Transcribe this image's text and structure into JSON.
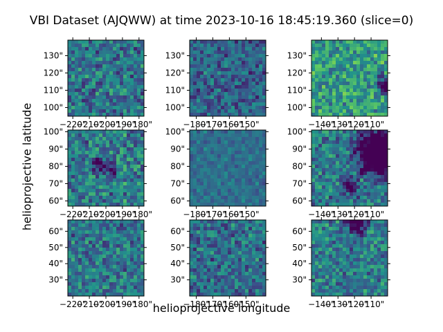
{
  "chart_data": {
    "type": "heatmap",
    "title": "VBI Dataset (AJQWW) at time 2023-10-16 18:45:19.360 (slice=0)",
    "xlabel": "helioprojective longitude",
    "ylabel": "helioprojective latitude",
    "colormap": [
      "#440154",
      "#3b528b",
      "#21918c",
      "#5ec962",
      "#fde725"
    ],
    "grid": false,
    "panels": [
      {
        "row": 0,
        "col": 0,
        "xlim": [
          -223,
          -177
        ],
        "ylim": [
          95,
          139
        ],
        "xticks": [
          "−220\"",
          "−210\"",
          "−200\"",
          "−190\"",
          "−180\""
        ],
        "xtick_values": [
          -220,
          -210,
          -200,
          -190,
          -180
        ],
        "yticks": [
          "100\"",
          "110\"",
          "120\"",
          "130\""
        ],
        "ytick_values": [
          100,
          110,
          120,
          130
        ],
        "mean_level": 0.38,
        "contrast": 0.22,
        "features": []
      },
      {
        "row": 0,
        "col": 1,
        "xlim": [
          -184,
          -138
        ],
        "ylim": [
          95,
          139
        ],
        "xticks": [
          "−180\"",
          "−170\"",
          "−160\"",
          "−150\""
        ],
        "xtick_values": [
          -180,
          -170,
          -160,
          -150
        ],
        "yticks": [
          "100\"",
          "110\"",
          "120\"",
          "130\""
        ],
        "ytick_values": [
          100,
          110,
          120,
          130
        ],
        "mean_level": 0.32,
        "contrast": 0.18,
        "features": []
      },
      {
        "row": 0,
        "col": 2,
        "xlim": [
          -146,
          -100
        ],
        "ylim": [
          95,
          139
        ],
        "xticks": [
          "−140\"",
          "−130\"",
          "−120\"",
          "−110\""
        ],
        "xtick_values": [
          -140,
          -130,
          -120,
          -110
        ],
        "yticks": [
          "100\"",
          "110\"",
          "120\"",
          "130\""
        ],
        "ytick_values": [
          100,
          110,
          120,
          130
        ],
        "mean_level": 0.55,
        "contrast": 0.22,
        "features": [
          [
            -101,
            112,
            3,
            0.9
          ],
          [
            -105,
            118,
            1.5,
            0.6
          ]
        ]
      },
      {
        "row": 1,
        "col": 0,
        "xlim": [
          -223,
          -177
        ],
        "ylim": [
          57,
          101
        ],
        "xticks": [
          "−220\"",
          "−210\"",
          "−200\"",
          "−190\"",
          "−180\""
        ],
        "xtick_values": [
          -220,
          -210,
          -200,
          -190,
          -180
        ],
        "yticks": [
          "60\"",
          "70\"",
          "80\"",
          "90\"",
          "100\""
        ],
        "ytick_values": [
          60,
          70,
          80,
          90,
          100
        ],
        "mean_level": 0.42,
        "contrast": 0.22,
        "features": [
          [
            -203,
            80,
            3,
            0.5
          ],
          [
            -196,
            78,
            2,
            0.5
          ],
          [
            -205,
            84,
            1.5,
            0.4
          ]
        ]
      },
      {
        "row": 1,
        "col": 1,
        "xlim": [
          -184,
          -138
        ],
        "ylim": [
          57,
          101
        ],
        "xticks": [
          "−180\"",
          "−170\"",
          "−160\"",
          "−150\""
        ],
        "xtick_values": [
          -180,
          -170,
          -160,
          -150
        ],
        "yticks": [
          "60\"",
          "70\"",
          "80\"",
          "90\"",
          "100\""
        ],
        "ytick_values": [
          60,
          70,
          80,
          90,
          100
        ],
        "mean_level": 0.36,
        "contrast": 0.08,
        "features": []
      },
      {
        "row": 1,
        "col": 2,
        "xlim": [
          -146,
          -100
        ],
        "ylim": [
          57,
          101
        ],
        "xticks": [
          "−140\"",
          "−130\"",
          "−120\"",
          "−110\""
        ],
        "xtick_values": [
          -140,
          -130,
          -120,
          -110
        ],
        "yticks": [
          "60\"",
          "70\"",
          "80\"",
          "90\"",
          "100\""
        ],
        "ytick_values": [
          60,
          70,
          80,
          90,
          100
        ],
        "mean_level": 0.4,
        "contrast": 0.2,
        "features": [
          [
            -104,
            88,
            9,
            1.0
          ],
          [
            -123,
            69,
            3,
            0.6
          ],
          [
            -115,
            77,
            1.5,
            0.4
          ]
        ]
      },
      {
        "row": 2,
        "col": 0,
        "xlim": [
          -223,
          -177
        ],
        "ylim": [
          20,
          67
        ],
        "xticks": [
          "−220\"",
          "−210\"",
          "−200\"",
          "−190\"",
          "−180\""
        ],
        "xtick_values": [
          -220,
          -210,
          -200,
          -190,
          -180
        ],
        "yticks": [
          "30\"",
          "40\"",
          "50\"",
          "60\""
        ],
        "ytick_values": [
          30,
          40,
          50,
          60
        ],
        "mean_level": 0.4,
        "contrast": 0.2,
        "features": [
          [
            -190,
            62,
            2,
            0.4
          ]
        ]
      },
      {
        "row": 2,
        "col": 1,
        "xlim": [
          -184,
          -138
        ],
        "ylim": [
          20,
          67
        ],
        "xticks": [
          "−180\"",
          "−170\"",
          "−160\"",
          "−150\""
        ],
        "xtick_values": [
          -180,
          -170,
          -160,
          -150
        ],
        "yticks": [
          "30\"",
          "40\"",
          "50\"",
          "60\""
        ],
        "ytick_values": [
          30,
          40,
          50,
          60
        ],
        "mean_level": 0.36,
        "contrast": 0.2,
        "features": []
      },
      {
        "row": 2,
        "col": 2,
        "xlim": [
          -146,
          -100
        ],
        "ylim": [
          20,
          67
        ],
        "xticks": [
          "−140\"",
          "−130\"",
          "−120\"",
          "−110\""
        ],
        "xtick_values": [
          -140,
          -130,
          -120,
          -110
        ],
        "yticks": [
          "30\"",
          "40\"",
          "50\"",
          "60\""
        ],
        "ytick_values": [
          30,
          40,
          50,
          60
        ],
        "mean_level": 0.42,
        "contrast": 0.2,
        "features": [
          [
            -118,
            66,
            4,
            0.7
          ],
          [
            -116,
            58,
            1.5,
            0.4
          ]
        ]
      }
    ]
  }
}
